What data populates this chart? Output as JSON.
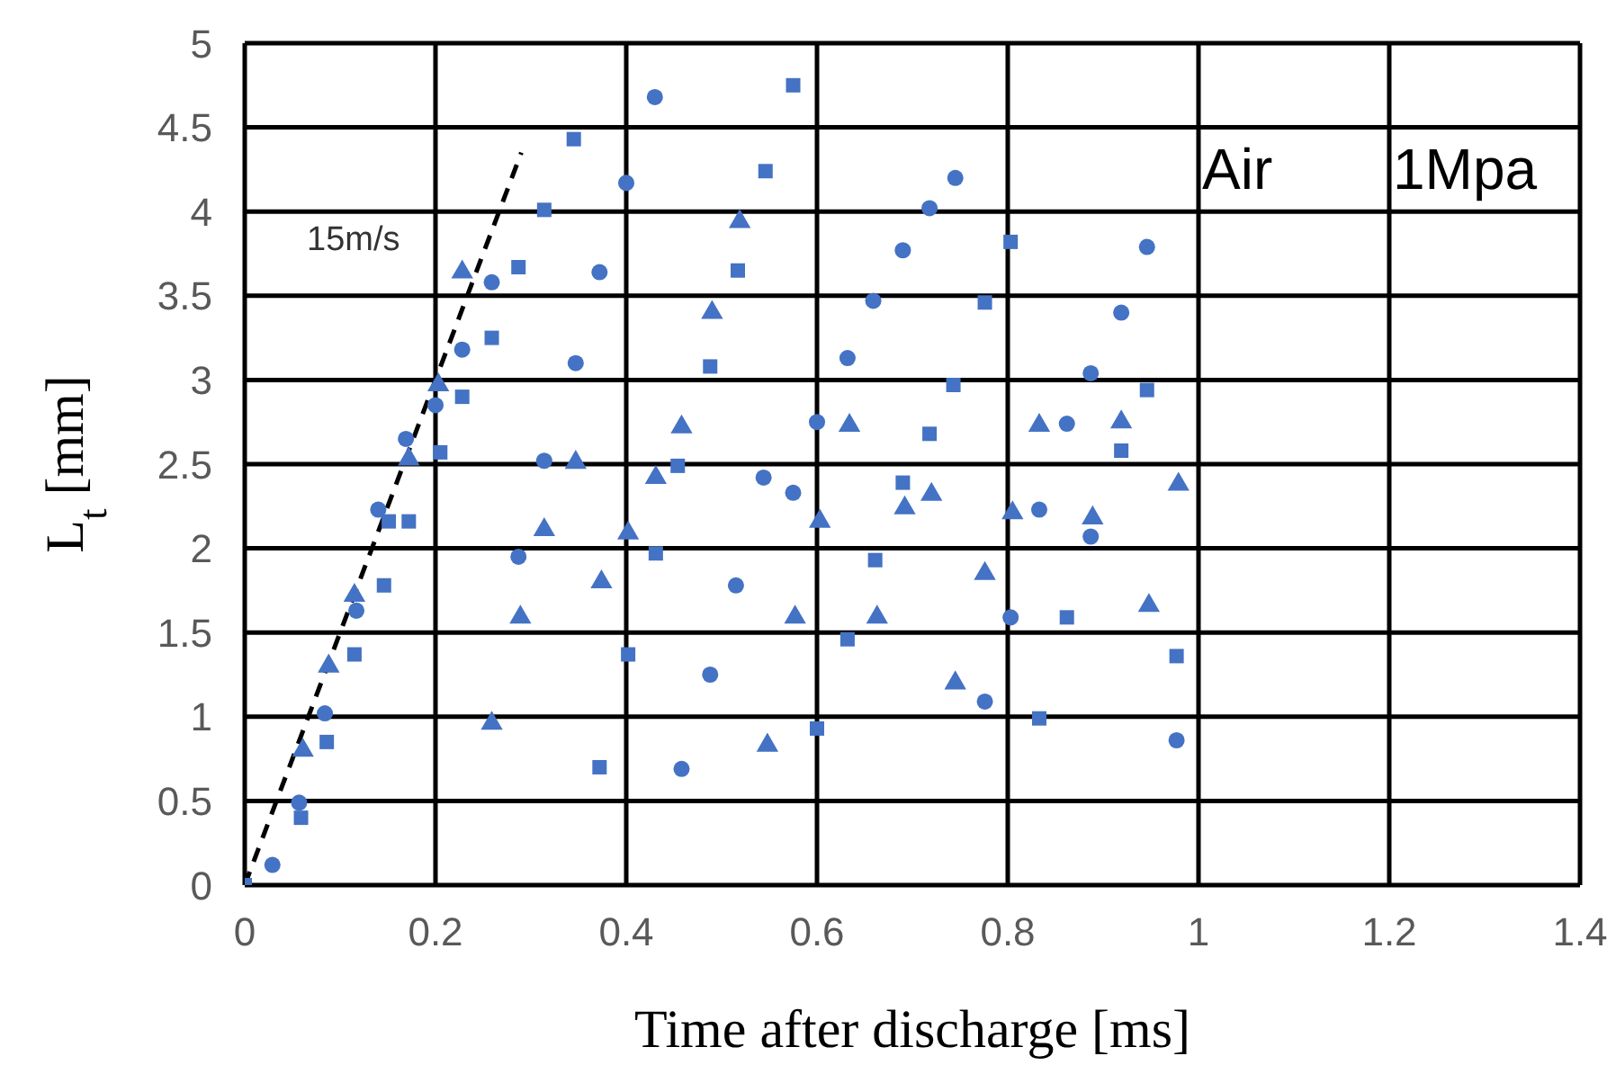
{
  "chart_data": {
    "type": "scatter",
    "xlabel": "Time after discharge [ms]",
    "ylabel": "L$_{t}$ [mm]",
    "xlim": [
      0,
      1.4
    ],
    "xticks": [
      0,
      0.2,
      0.4,
      0.6,
      0.8,
      1,
      1.2,
      1.4
    ],
    "ylim": [
      0,
      5
    ],
    "yticks": [
      0,
      0.5,
      1,
      1.5,
      2,
      2.5,
      3,
      3.5,
      4,
      4.5,
      5
    ],
    "grid": true,
    "annotations": [
      "15m/s",
      "Air",
      "1Mpa"
    ],
    "series": [
      {
        "marker": "circle",
        "color": "#4472c4",
        "x": [
          0.029,
          0.057,
          0.084,
          0.117,
          0.14,
          0.169,
          0.2,
          0.228,
          0.259,
          0.287,
          0.314,
          0.347,
          0.372,
          0.4,
          0.43,
          0.458,
          0.488,
          0.515,
          0.544,
          0.575,
          0.6,
          0.632,
          0.659,
          0.69,
          0.718,
          0.745,
          0.776,
          0.803,
          0.833,
          0.862,
          0.887,
          0.887,
          0.919,
          0.946,
          0.977
        ],
        "values": [
          0.12,
          0.49,
          1.02,
          1.63,
          2.23,
          2.65,
          2.85,
          3.18,
          3.58,
          1.95,
          2.52,
          3.1,
          3.64,
          4.17,
          4.68,
          0.69,
          1.25,
          1.78,
          2.42,
          2.33,
          2.75,
          3.13,
          3.47,
          3.77,
          4.02,
          4.2,
          1.09,
          1.59,
          2.23,
          2.74,
          3.04,
          2.07,
          3.4,
          3.79,
          0.86
        ]
      },
      {
        "marker": "square",
        "color": "#4472c4",
        "x": [
          0,
          0.059,
          0.086,
          0.115,
          0.146,
          0.151,
          0.172,
          0.205,
          0.228,
          0.259,
          0.287,
          0.314,
          0.345,
          0.372,
          0.402,
          0.431,
          0.454,
          0.488,
          0.517,
          0.546,
          0.575,
          0.6,
          0.632,
          0.661,
          0.69,
          0.718,
          0.743,
          0.776,
          0.803,
          0.833,
          0.862,
          0.919,
          0.946,
          0.977
        ],
        "values": [
          0,
          0.4,
          0.85,
          1.37,
          1.78,
          2.16,
          2.16,
          2.57,
          2.9,
          3.25,
          3.67,
          4.01,
          4.43,
          0.7,
          1.37,
          1.97,
          2.49,
          3.08,
          3.65,
          4.24,
          4.75,
          0.93,
          1.46,
          1.93,
          2.39,
          2.68,
          2.97,
          3.46,
          3.82,
          0.99,
          1.59,
          2.58,
          2.94,
          1.36
        ]
      },
      {
        "marker": "triangle",
        "color": "#4472c4",
        "x": [
          0.061,
          0.088,
          0.115,
          0.172,
          0.203,
          0.228,
          0.259,
          0.289,
          0.314,
          0.347,
          0.374,
          0.402,
          0.431,
          0.458,
          0.49,
          0.519,
          0.548,
          0.577,
          0.603,
          0.634,
          0.663,
          0.692,
          0.72,
          0.745,
          0.776,
          0.805,
          0.833,
          0.889,
          0.919,
          0.948,
          0.979
        ],
        "values": [
          0.8,
          1.3,
          1.72,
          2.53,
          2.97,
          3.64,
          0.96,
          1.59,
          2.11,
          2.51,
          1.8,
          2.09,
          2.42,
          2.72,
          3.4,
          3.94,
          0.83,
          1.59,
          2.16,
          2.73,
          1.59,
          2.24,
          2.32,
          1.2,
          1.85,
          2.21,
          2.73,
          2.18,
          2.75,
          1.66,
          2.38
        ]
      },
      {
        "type": "line",
        "line_style": "dashed",
        "color": "#000000",
        "x": [
          0,
          0.29
        ],
        "values": [
          0,
          4.35
        ]
      }
    ]
  }
}
